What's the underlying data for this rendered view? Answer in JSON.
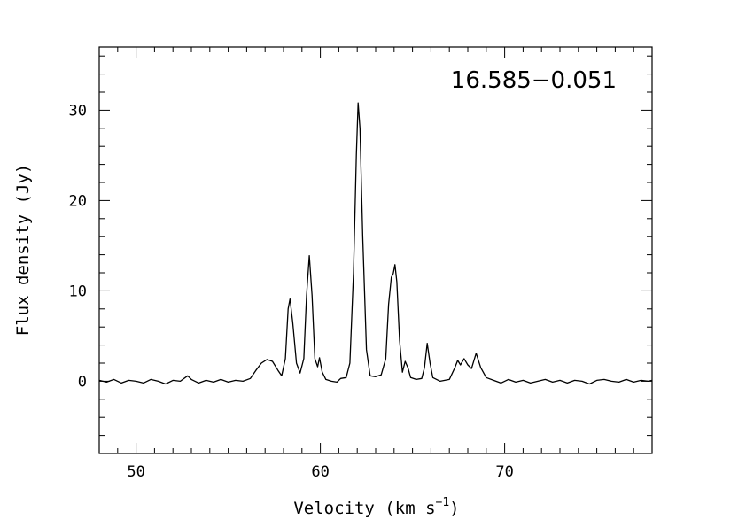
{
  "chart_data": {
    "type": "line",
    "title": "",
    "annotation": "16.585−0.051",
    "xlabel": "Velocity (km s",
    "xlabel_sup": "−1",
    "xlabel_tail": ")",
    "ylabel": "Flux density (Jy)",
    "xlim": [
      48,
      78
    ],
    "ylim": [
      -8,
      37
    ],
    "xticks": [
      50,
      60,
      70
    ],
    "yticks": [
      0,
      10,
      20,
      30
    ],
    "grid": false,
    "series": [
      {
        "color": "#000000",
        "points": [
          [
            48.0,
            0.1
          ],
          [
            48.4,
            -0.1
          ],
          [
            48.8,
            0.2
          ],
          [
            49.2,
            -0.2
          ],
          [
            49.6,
            0.1
          ],
          [
            50.0,
            0.0
          ],
          [
            50.4,
            -0.2
          ],
          [
            50.8,
            0.2
          ],
          [
            51.2,
            0.0
          ],
          [
            51.6,
            -0.3
          ],
          [
            52.0,
            0.1
          ],
          [
            52.4,
            0.0
          ],
          [
            52.8,
            0.6
          ],
          [
            53.0,
            0.2
          ],
          [
            53.4,
            -0.2
          ],
          [
            53.8,
            0.1
          ],
          [
            54.2,
            -0.1
          ],
          [
            54.6,
            0.2
          ],
          [
            55.0,
            -0.1
          ],
          [
            55.4,
            0.1
          ],
          [
            55.8,
            0.0
          ],
          [
            56.2,
            0.3
          ],
          [
            56.5,
            1.2
          ],
          [
            56.8,
            2.0
          ],
          [
            57.1,
            2.4
          ],
          [
            57.4,
            2.2
          ],
          [
            57.7,
            1.2
          ],
          [
            57.9,
            0.6
          ],
          [
            58.1,
            2.5
          ],
          [
            58.25,
            8.0
          ],
          [
            58.35,
            9.1
          ],
          [
            58.5,
            6.5
          ],
          [
            58.7,
            2.0
          ],
          [
            58.9,
            0.9
          ],
          [
            59.1,
            2.5
          ],
          [
            59.25,
            9.5
          ],
          [
            59.4,
            13.9
          ],
          [
            59.55,
            9.5
          ],
          [
            59.7,
            2.5
          ],
          [
            59.85,
            1.6
          ],
          [
            59.95,
            2.6
          ],
          [
            60.1,
            1.0
          ],
          [
            60.3,
            0.2
          ],
          [
            60.6,
            0.0
          ],
          [
            60.9,
            -0.1
          ],
          [
            61.1,
            0.3
          ],
          [
            61.4,
            0.4
          ],
          [
            61.6,
            2.0
          ],
          [
            61.8,
            12.0
          ],
          [
            61.95,
            25.0
          ],
          [
            62.05,
            30.8
          ],
          [
            62.15,
            28.0
          ],
          [
            62.3,
            16.0
          ],
          [
            62.5,
            3.5
          ],
          [
            62.7,
            0.6
          ],
          [
            63.0,
            0.5
          ],
          [
            63.3,
            0.7
          ],
          [
            63.55,
            2.5
          ],
          [
            63.7,
            8.5
          ],
          [
            63.85,
            11.5
          ],
          [
            63.95,
            11.9
          ],
          [
            64.05,
            12.9
          ],
          [
            64.15,
            11.0
          ],
          [
            64.3,
            4.5
          ],
          [
            64.45,
            1.0
          ],
          [
            64.6,
            2.2
          ],
          [
            64.75,
            1.5
          ],
          [
            64.9,
            0.4
          ],
          [
            65.2,
            0.2
          ],
          [
            65.5,
            0.3
          ],
          [
            65.65,
            1.5
          ],
          [
            65.8,
            4.2
          ],
          [
            65.95,
            2.0
          ],
          [
            66.1,
            0.4
          ],
          [
            66.5,
            0.0
          ],
          [
            67.0,
            0.2
          ],
          [
            67.3,
            1.5
          ],
          [
            67.45,
            2.3
          ],
          [
            67.6,
            1.8
          ],
          [
            67.8,
            2.5
          ],
          [
            68.0,
            1.8
          ],
          [
            68.2,
            1.4
          ],
          [
            68.45,
            3.1
          ],
          [
            68.7,
            1.5
          ],
          [
            69.0,
            0.4
          ],
          [
            69.4,
            0.1
          ],
          [
            69.8,
            -0.2
          ],
          [
            70.2,
            0.2
          ],
          [
            70.6,
            -0.1
          ],
          [
            71.0,
            0.1
          ],
          [
            71.4,
            -0.2
          ],
          [
            71.8,
            0.0
          ],
          [
            72.2,
            0.2
          ],
          [
            72.6,
            -0.1
          ],
          [
            73.0,
            0.1
          ],
          [
            73.4,
            -0.2
          ],
          [
            73.8,
            0.1
          ],
          [
            74.2,
            0.0
          ],
          [
            74.6,
            -0.3
          ],
          [
            75.0,
            0.1
          ],
          [
            75.4,
            0.2
          ],
          [
            75.8,
            0.0
          ],
          [
            76.2,
            -0.1
          ],
          [
            76.6,
            0.2
          ],
          [
            77.0,
            -0.1
          ],
          [
            77.4,
            0.1
          ],
          [
            77.8,
            0.0
          ],
          [
            78.0,
            0.1
          ]
        ]
      }
    ]
  }
}
